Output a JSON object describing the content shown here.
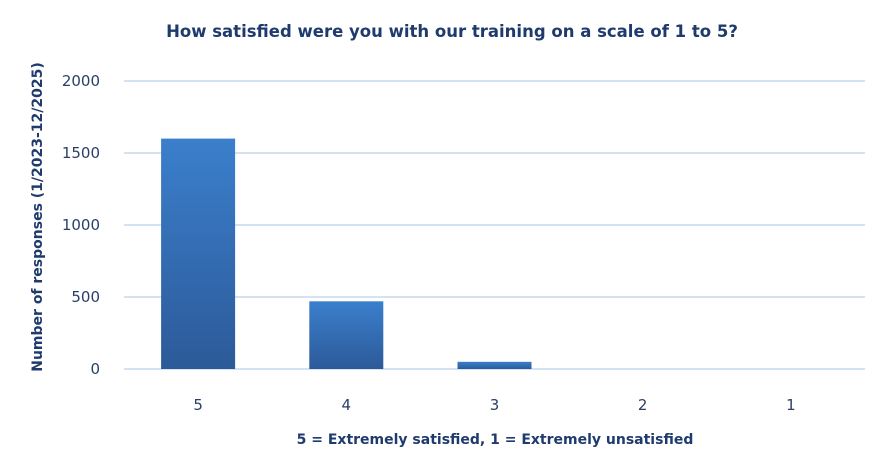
{
  "chart_data": {
    "type": "bar",
    "title": "How satisfied were you with our training on a scale of 1 to 5?",
    "xlabel": "5 = Extremely satisfied, 1 = Extremely unsatisfied",
    "ylabel": "Number of responses  (1/2023-12/2025)",
    "categories": [
      "5",
      "4",
      "3",
      "2",
      "1"
    ],
    "values": [
      1600,
      470,
      50,
      0,
      0
    ],
    "ylim": [
      0,
      2000
    ],
    "yticks": [
      0,
      500,
      1000,
      1500,
      2000
    ],
    "grid": true,
    "legend": "none",
    "colors": {
      "bar_top": "#3b7fcc",
      "bar_bottom": "#2c5a99",
      "grid": "#d3e3f3",
      "text": "#1f3b6e"
    }
  }
}
